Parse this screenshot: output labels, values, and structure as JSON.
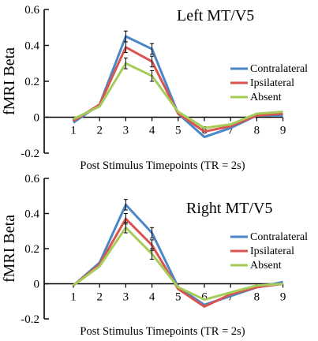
{
  "chart_data": [
    {
      "type": "line",
      "title": "Left MT/V5",
      "xlabel": "Post Stimulus Timepoints (TR = 2s)",
      "ylabel": "fMRI Beta",
      "x": [
        1,
        2,
        3,
        4,
        5,
        6,
        7,
        8,
        9
      ],
      "ylim": [
        -0.2,
        0.6
      ],
      "yticks": [
        -0.2,
        0,
        0.2,
        0.4,
        0.6
      ],
      "ytick_labels": [
        "-0.2",
        "0",
        "0.2",
        "0.4",
        "0.6"
      ],
      "xtick_labels": [
        "1",
        "2",
        "3",
        "4",
        "5",
        "6",
        "7",
        "8",
        "9"
      ],
      "legend_position": "right",
      "grid": false,
      "series": [
        {
          "name": "Contralateral",
          "color": "#4a86c8",
          "values": [
            -0.03,
            0.07,
            0.45,
            0.38,
            0.02,
            -0.11,
            -0.06,
            0.01,
            0.01
          ],
          "errors": [
            0,
            0,
            0.03,
            0.03,
            0,
            0,
            0,
            0,
            0
          ]
        },
        {
          "name": "Ipsilateral",
          "color": "#d9534f",
          "values": [
            -0.02,
            0.07,
            0.39,
            0.31,
            0.02,
            -0.08,
            -0.05,
            0.01,
            0.02
          ],
          "errors": [
            0,
            0,
            0.03,
            0.03,
            0,
            0,
            0,
            0,
            0
          ]
        },
        {
          "name": "Absent",
          "color": "#a5cc58",
          "values": [
            -0.01,
            0.06,
            0.3,
            0.23,
            0.03,
            -0.06,
            -0.04,
            0.02,
            0.03
          ],
          "errors": [
            0,
            0,
            0.03,
            0.03,
            0,
            0,
            0,
            0,
            0
          ]
        }
      ]
    },
    {
      "type": "line",
      "title": "Right MT/V5",
      "xlabel": "Post Stimulus Timepoints (TR = 2s)",
      "ylabel": "fMRI Beta",
      "x": [
        1,
        2,
        3,
        4,
        5,
        6,
        7,
        8,
        9
      ],
      "ylim": [
        -0.2,
        0.6
      ],
      "yticks": [
        -0.2,
        0,
        0.2,
        0.4,
        0.6
      ],
      "ytick_labels": [
        "-0.2",
        "0",
        "0.2",
        "0.4",
        "0.6"
      ],
      "xtick_labels": [
        "1",
        "2",
        "3",
        "4",
        "5",
        "6",
        "7",
        "8",
        "9"
      ],
      "legend_position": "right",
      "grid": false,
      "series": [
        {
          "name": "Contralateral",
          "color": "#4a86c8",
          "values": [
            -0.01,
            0.12,
            0.45,
            0.29,
            -0.02,
            -0.12,
            -0.07,
            -0.02,
            0.01
          ],
          "errors": [
            0,
            0,
            0.03,
            0.03,
            0,
            0,
            0,
            0,
            0
          ]
        },
        {
          "name": "Ipsilateral",
          "color": "#d9534f",
          "values": [
            -0.01,
            0.11,
            0.37,
            0.22,
            -0.03,
            -0.13,
            -0.06,
            -0.02,
            0.0
          ],
          "errors": [
            0,
            0,
            0.03,
            0.03,
            0,
            0,
            0,
            0,
            0
          ]
        },
        {
          "name": "Absent",
          "color": "#a5cc58",
          "values": [
            -0.01,
            0.1,
            0.32,
            0.17,
            -0.02,
            -0.09,
            -0.05,
            -0.01,
            0.0
          ],
          "errors": [
            0,
            0,
            0.03,
            0.03,
            0,
            0,
            0,
            0,
            0
          ]
        }
      ]
    }
  ]
}
